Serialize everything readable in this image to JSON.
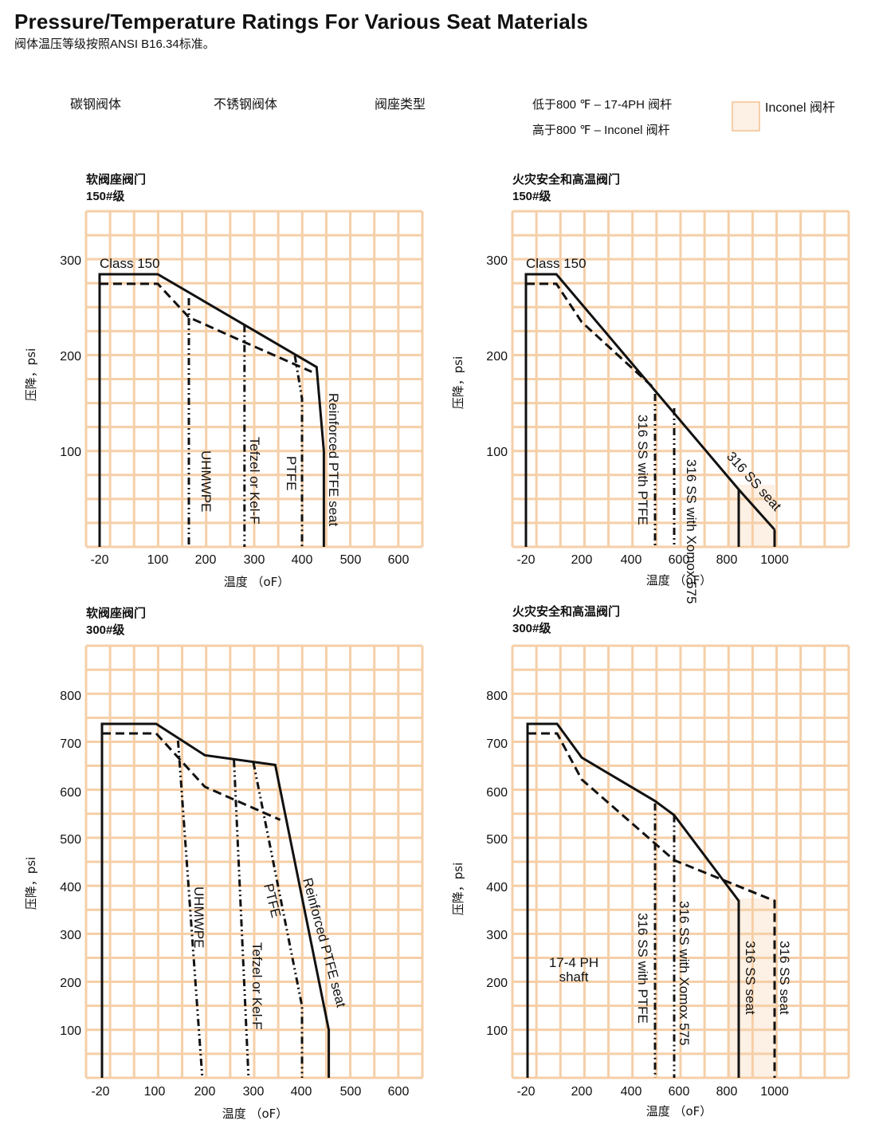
{
  "header": {
    "title": "Pressure/Temperature Ratings For Various Seat Materials",
    "subtitle": "阀体温压等级按照ANSI B16.34标准。"
  },
  "legend": {
    "carbon_steel_body": "碳钢阀体",
    "stainless_body": "不锈钢阀体",
    "seat_type": "阀座类型",
    "stem_below_800": "低于800 ℉ – 17-4PH 阀杆",
    "stem_above_800": "高于800 ℉ – Inconel 阀杆",
    "inconel_label": "Inconel 阀杆",
    "colors": {
      "grid": "#f5cfa8",
      "inconel_fill": "#fdf0e4",
      "line": "#111111"
    }
  },
  "panels": [
    {
      "title": "软阀座阀门",
      "subtitle": "150#级"
    },
    {
      "title": "火灾安全和高温阀门",
      "subtitle": "150#级"
    },
    {
      "title": "软阀座阀门",
      "subtitle": "300#级"
    },
    {
      "title": "火灾安全和高温阀门",
      "subtitle": "300#级"
    }
  ],
  "chart_data": [
    {
      "type": "line",
      "title": "软阀座阀门 150#级",
      "xlabel": "温度 （oF）",
      "ylabel": "压降，psi",
      "xticks": [
        "-20",
        "100",
        "200",
        "300",
        "400",
        "500",
        "600"
      ],
      "yticks": [
        "100",
        "200",
        "300"
      ],
      "annotation": "Class 150",
      "series": [
        {
          "name": "Class 150",
          "style": "solid",
          "points": [
            [
              -20,
              0
            ],
            [
              -20,
              285
            ],
            [
              100,
              285
            ],
            [
              430,
              188
            ],
            [
              445,
              100
            ],
            [
              445,
              0
            ]
          ]
        },
        {
          "style": "dash",
          "points": [
            [
              -20,
              275
            ],
            [
              100,
              275
            ],
            [
              165,
              240
            ],
            [
              280,
              214
            ],
            [
              420,
              183
            ]
          ]
        },
        {
          "name": "UHMWPE",
          "style": "dashdot",
          "points": [
            [
              165,
              260
            ],
            [
              165,
              0
            ]
          ]
        },
        {
          "name": "Tefzel or Kel-F",
          "style": "dashdot",
          "points": [
            [
              280,
              232
            ],
            [
              280,
              0
            ]
          ]
        },
        {
          "name": "PTFE",
          "style": "dashdot",
          "points": [
            [
              385,
              200
            ],
            [
              400,
              155
            ],
            [
              400,
              0
            ]
          ]
        },
        {
          "name": "Reinforced PTFE seat",
          "style": "solid"
        }
      ]
    },
    {
      "type": "line",
      "title": "火灾安全和高温阀门 150#级",
      "xlabel": "温度 （oF）",
      "ylabel": "压降，psi",
      "xticks": [
        "-20",
        "200",
        "400",
        "600",
        "800",
        "1000"
      ],
      "yticks": [
        "100",
        "200",
        "300"
      ],
      "annotation": "Class 150",
      "inconel_region": [
        800,
        1000
      ],
      "series": [
        {
          "name": "Class 150",
          "style": "solid",
          "points": [
            [
              -20,
              0
            ],
            [
              -20,
              285
            ],
            [
              100,
              285
            ],
            [
              850,
              60
            ],
            [
              1000,
              18
            ]
          ]
        },
        {
          "style": "dash",
          "points": [
            [
              -20,
              275
            ],
            [
              100,
              275
            ],
            [
              200,
              235
            ],
            [
              500,
              165
            ]
          ]
        },
        {
          "name": "316 SS with PTFE",
          "style": "dashdot",
          "points": [
            [
              500,
              160
            ],
            [
              500,
              0
            ]
          ]
        },
        {
          "name": "316 SS with Xomox 575",
          "style": "dashdot",
          "points": [
            [
              580,
              145
            ],
            [
              580,
              0
            ]
          ]
        },
        {
          "name": "316 SS seat",
          "style": "solid",
          "points": [
            [
              850,
              60
            ],
            [
              850,
              0
            ]
          ]
        },
        {
          "style": "solid",
          "points": [
            [
              1000,
              18
            ],
            [
              1000,
              0
            ]
          ]
        }
      ]
    },
    {
      "type": "line",
      "title": "软阀座阀门 300#级",
      "xlabel": "温度 （oF）",
      "ylabel": "压降，psi",
      "xticks": [
        "-20",
        "100",
        "200",
        "300",
        "400",
        "500",
        "600"
      ],
      "yticks": [
        "100",
        "200",
        "300",
        "400",
        "500",
        "600",
        "700",
        "800"
      ],
      "series": [
        {
          "style": "solid",
          "points": [
            [
              -20,
              0
            ],
            [
              -20,
              740
            ],
            [
              100,
              740
            ],
            [
              200,
              675
            ],
            [
              345,
              655
            ],
            [
              455,
              100
            ],
            [
              455,
              0
            ]
          ]
        },
        {
          "style": "dash",
          "points": [
            [
              -20,
              720
            ],
            [
              100,
              720
            ],
            [
              200,
              610
            ],
            [
              355,
              540
            ]
          ]
        },
        {
          "name": "UHMWPE",
          "style": "dashdot",
          "points": [
            [
              145,
              705
            ],
            [
              195,
              0
            ]
          ]
        },
        {
          "name": "Tefzel or Kel-F",
          "style": "dashdot",
          "points": [
            [
              260,
              665
            ],
            [
              290,
              0
            ]
          ]
        },
        {
          "name": "PTFE",
          "style": "dashdot",
          "points": [
            [
              300,
              660
            ],
            [
              400,
              150
            ],
            [
              400,
              0
            ]
          ]
        },
        {
          "name": "Reinforced PTFE seat",
          "style": "solid"
        }
      ]
    },
    {
      "type": "line",
      "title": "火灾安全和高温阀门 300#级",
      "xlabel": "温度 （oF）",
      "ylabel": "压降，psi",
      "xticks": [
        "-20",
        "200",
        "400",
        "600",
        "800",
        "1000"
      ],
      "yticks": [
        "100",
        "200",
        "300",
        "400",
        "500",
        "600",
        "700",
        "800"
      ],
      "annotation": "17-4 PH shaft",
      "inconel_region": [
        800,
        1000
      ],
      "series": [
        {
          "style": "solid",
          "points": [
            [
              -20,
              0
            ],
            [
              -20,
              740
            ],
            [
              100,
              740
            ],
            [
              200,
              670
            ],
            [
              500,
              580
            ],
            [
              580,
              550
            ],
            [
              850,
              370
            ],
            [
              850,
              0
            ]
          ]
        },
        {
          "style": "dash",
          "points": [
            [
              -20,
              720
            ],
            [
              100,
              720
            ],
            [
              200,
              625
            ],
            [
              580,
              455
            ],
            [
              1000,
              370
            ],
            [
              1000,
              0
            ]
          ]
        },
        {
          "name": "316 SS with PTFE",
          "style": "dashdot",
          "points": [
            [
              500,
              575
            ],
            [
              500,
              0
            ]
          ]
        },
        {
          "name": "316 SS with Xomox 575",
          "style": "dashdot",
          "points": [
            [
              580,
              550
            ],
            [
              580,
              0
            ]
          ]
        },
        {
          "name": "316 SS seat",
          "style": "solid"
        },
        {
          "name": "316 SS seat",
          "style": "dash"
        }
      ]
    }
  ]
}
